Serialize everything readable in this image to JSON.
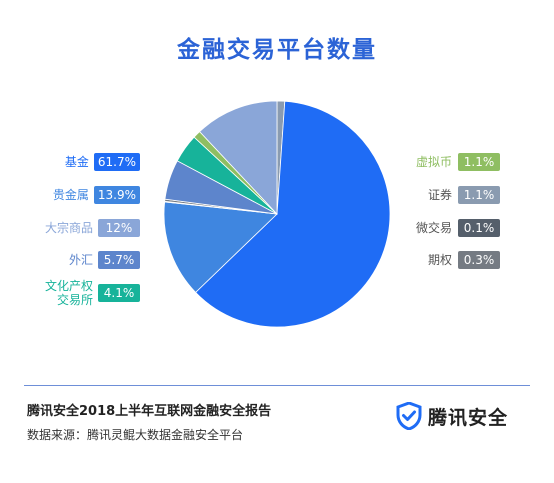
{
  "title": "金融交易平台数量",
  "chart_data": {
    "type": "pie",
    "title": "金融交易平台数量",
    "slices": [
      {
        "label": "证券",
        "value": 1.1,
        "display": "1.1%",
        "color": "#8a9bb0"
      },
      {
        "label": "基金",
        "value": 61.7,
        "display": "61.7%",
        "color": "#1f6cf5"
      },
      {
        "label": "贵金属",
        "value": 13.9,
        "display": "13.9%",
        "color": "#3f86e0"
      },
      {
        "label": "微交易",
        "value": 0.1,
        "display": "0.1%",
        "color": "#555f6b"
      },
      {
        "label": "期权",
        "value": 0.3,
        "display": "0.3%",
        "color": "#757b83"
      },
      {
        "label": "外汇",
        "value": 5.7,
        "display": "5.7%",
        "color": "#5d85cc"
      },
      {
        "label": "文化产权交易所",
        "value": 4.1,
        "display": "4.1%",
        "color": "#17b39a"
      },
      {
        "label": "虚拟币",
        "value": 1.1,
        "display": "1.1%",
        "color": "#8fbe62"
      },
      {
        "label": "大宗商品",
        "value": 12,
        "display": "12%",
        "color": "#8aa6d8"
      }
    ]
  },
  "legend_left": [
    {
      "name": "基金",
      "badge": "61.7%",
      "color": "#1f6cf5",
      "text_color": "#1f6cf5"
    },
    {
      "name": "贵金属",
      "badge": "13.9%",
      "color": "#3f86e0",
      "text_color": "#3f86e0"
    },
    {
      "name": "大宗商品",
      "badge": "12%",
      "color": "#8aa6d8",
      "text_color": "#8aa6d8"
    },
    {
      "name": "外汇",
      "badge": "5.7%",
      "color": "#5d85cc",
      "text_color": "#5d85cc"
    },
    {
      "name": "文化产权\n交易所",
      "badge": "4.1%",
      "color": "#17b39a",
      "text_color": "#17b39a"
    }
  ],
  "legend_right": [
    {
      "name": "虚拟币",
      "badge": "1.1%",
      "color": "#8fbe62",
      "text_color": "#8fbe62"
    },
    {
      "name": "证券",
      "badge": "1.1%",
      "color": "#8a9bb0",
      "text_color": "#555"
    },
    {
      "name": "微交易",
      "badge": "0.1%",
      "color": "#555f6b",
      "text_color": "#555"
    },
    {
      "name": "期权",
      "badge": "0.3%",
      "color": "#757b83",
      "text_color": "#555"
    }
  ],
  "footer": {
    "title": "腾讯安全2018上半年互联网金融安全报告",
    "source": "数据来源：腾讯灵鲲大数据金融安全平台",
    "brand": "腾讯安全",
    "brand_icon": "shield-check-icon"
  }
}
